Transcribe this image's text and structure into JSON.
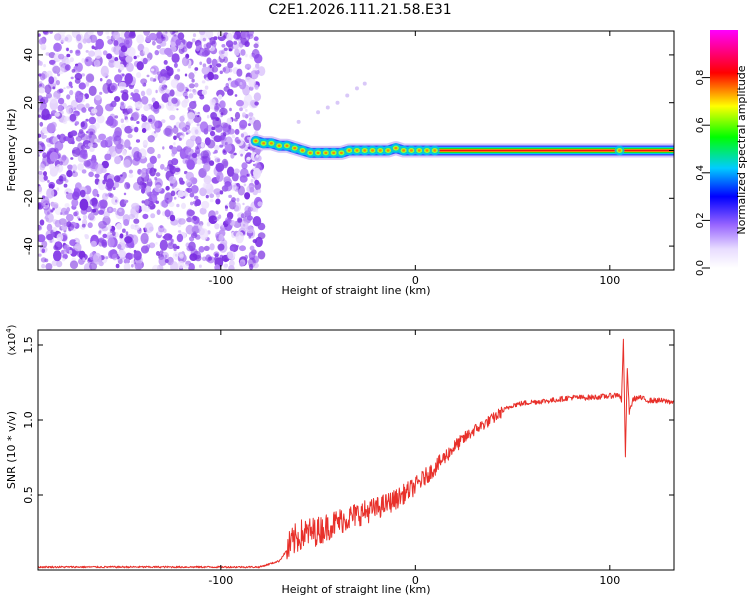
{
  "title": "C2E1.2026.111.21.58.E31",
  "chart_data": [
    {
      "type": "heatmap",
      "xlabel": "Height of straight line (km)",
      "ylabel": "Frequency (Hz)",
      "xlim": [
        -194,
        133
      ],
      "ylim": [
        -50,
        50
      ],
      "xticks": [
        -100,
        0,
        100
      ],
      "xtick_labels": [
        "-100",
        "0",
        "100"
      ],
      "yticks": [
        -40,
        -20,
        0,
        20,
        40
      ],
      "ytick_labels": [
        "-40",
        "-20",
        "0",
        "20",
        "40"
      ],
      "noise_region_x": [
        -194,
        -79
      ],
      "line_trace": {
        "x": [
          -82,
          -78,
          -74,
          -70,
          -66,
          -62,
          -58,
          -54,
          -50,
          -46,
          -42,
          -38,
          -34,
          -30,
          -26,
          -22,
          -18,
          -14,
          -10,
          -6,
          -2,
          2,
          6,
          10,
          20,
          40,
          60,
          80,
          100,
          105,
          110,
          120,
          133
        ],
        "y": [
          4,
          3,
          3,
          2,
          2,
          1,
          0,
          -1,
          -1,
          -1,
          -1,
          -1,
          0,
          0,
          0,
          0,
          0,
          0,
          1,
          0,
          0,
          0,
          0,
          0,
          0,
          0,
          0,
          0,
          0,
          0,
          0,
          0,
          0
        ]
      },
      "faint_branch": {
        "x": [
          -60,
          -50,
          -45,
          -40,
          -35,
          -30,
          -26
        ],
        "y": [
          12,
          16,
          18,
          20,
          23,
          26,
          28
        ]
      },
      "colorbar": {
        "label": "Normalized spectral amplitude",
        "range": [
          0,
          1
        ],
        "ticks": [
          0.0,
          0.2,
          0.4,
          0.6,
          0.8
        ],
        "tick_labels": [
          "0.0",
          "0.2",
          "0.4",
          "0.6",
          "0.8"
        ],
        "colormap": [
          "#ffffff",
          "#9966ff",
          "#0000ff",
          "#00ccff",
          "#00ff00",
          "#ffff00",
          "#ff0000",
          "#ff00ff"
        ]
      }
    },
    {
      "type": "line",
      "xlabel": "Height of straight line (km)",
      "ylabel": "SNR (10 * v/v)",
      "y_multiplier_label": "(x10",
      "y_multiplier_exp": "4",
      "y_multiplier_close": ")",
      "xlim": [
        -194,
        133
      ],
      "ylim": [
        0,
        1.6
      ],
      "xticks": [
        -100,
        0,
        100
      ],
      "xtick_labels": [
        "-100",
        "0",
        "100"
      ],
      "yticks": [
        0.5,
        1.0,
        1.5
      ],
      "ytick_labels": [
        "0.5",
        "1.0",
        "1.5"
      ],
      "color": "#e8302a",
      "series": [
        {
          "x": [
            -194,
            -150,
            -110,
            -80,
            -70,
            -65,
            -62,
            -58,
            -50,
            -40,
            -30,
            -20,
            -10,
            0,
            10,
            20,
            30,
            40,
            45,
            50,
            60,
            70,
            80,
            90,
            100,
            105,
            106,
            107,
            108,
            109,
            110,
            112,
            115,
            120,
            125,
            133
          ],
          "values": [
            0.02,
            0.02,
            0.02,
            0.02,
            0.06,
            0.15,
            0.2,
            0.24,
            0.26,
            0.32,
            0.37,
            0.41,
            0.47,
            0.56,
            0.68,
            0.82,
            0.93,
            1.01,
            1.06,
            1.1,
            1.12,
            1.13,
            1.15,
            1.15,
            1.16,
            1.17,
            1.12,
            1.55,
            0.75,
            1.35,
            1.05,
            1.14,
            1.15,
            1.13,
            1.13,
            1.12
          ]
        }
      ]
    }
  ]
}
